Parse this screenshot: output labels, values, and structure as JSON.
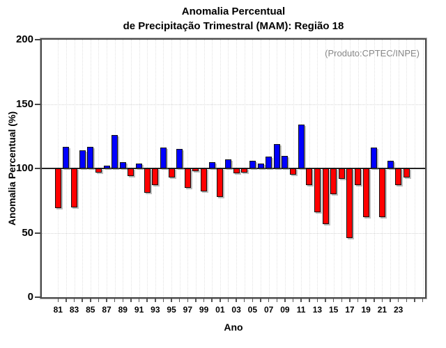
{
  "title": {
    "line1": "Anomalia Percentual",
    "line2": "de Precipitação Trimestral (MAM): Região 18"
  },
  "chart_data": {
    "type": "bar",
    "title": "Anomalia Percentual de Precipitação Trimestral (MAM): Região 18",
    "xlabel": "Ano",
    "ylabel": "Anomalia Percentual (%)",
    "annotation": "(Produto:CPTEC/INPE)",
    "ylim": [
      0,
      200
    ],
    "yticks": [
      0,
      50,
      100,
      150,
      200
    ],
    "baseline": 100,
    "grid": true,
    "legend_position": "none",
    "x_tick_labels": [
      "81",
      "83",
      "85",
      "87",
      "89",
      "91",
      "93",
      "95",
      "97",
      "99",
      "01",
      "03",
      "05",
      "07",
      "09",
      "11",
      "13",
      "15",
      "17",
      "19",
      "21",
      "23"
    ],
    "years": [
      1981,
      1982,
      1983,
      1984,
      1985,
      1986,
      1987,
      1988,
      1989,
      1990,
      1991,
      1992,
      1993,
      1994,
      1995,
      1996,
      1997,
      1998,
      1999,
      2000,
      2001,
      2002,
      2003,
      2004,
      2005,
      2006,
      2007,
      2008,
      2009,
      2010,
      2011,
      2012,
      2013,
      2014,
      2015,
      2016,
      2017,
      2018,
      2019,
      2020,
      2021,
      2022,
      2023,
      2024
    ],
    "values": [
      69,
      117,
      70,
      114,
      117,
      97,
      102,
      126,
      105,
      94,
      104,
      81,
      87,
      116,
      93,
      115,
      85,
      98,
      82,
      105,
      78,
      107,
      96,
      97,
      106,
      104,
      109,
      119,
      110,
      95,
      134,
      87,
      66,
      57,
      80,
      92,
      46,
      87,
      62,
      116,
      62,
      106,
      87,
      93
    ],
    "colors": {
      "above_baseline": "#0000ff",
      "below_baseline": "#ff0000",
      "bar_border": "#111111",
      "baseline_line": "#222222",
      "frame": "#4a4a4a",
      "annotation_text": "#878787"
    }
  }
}
